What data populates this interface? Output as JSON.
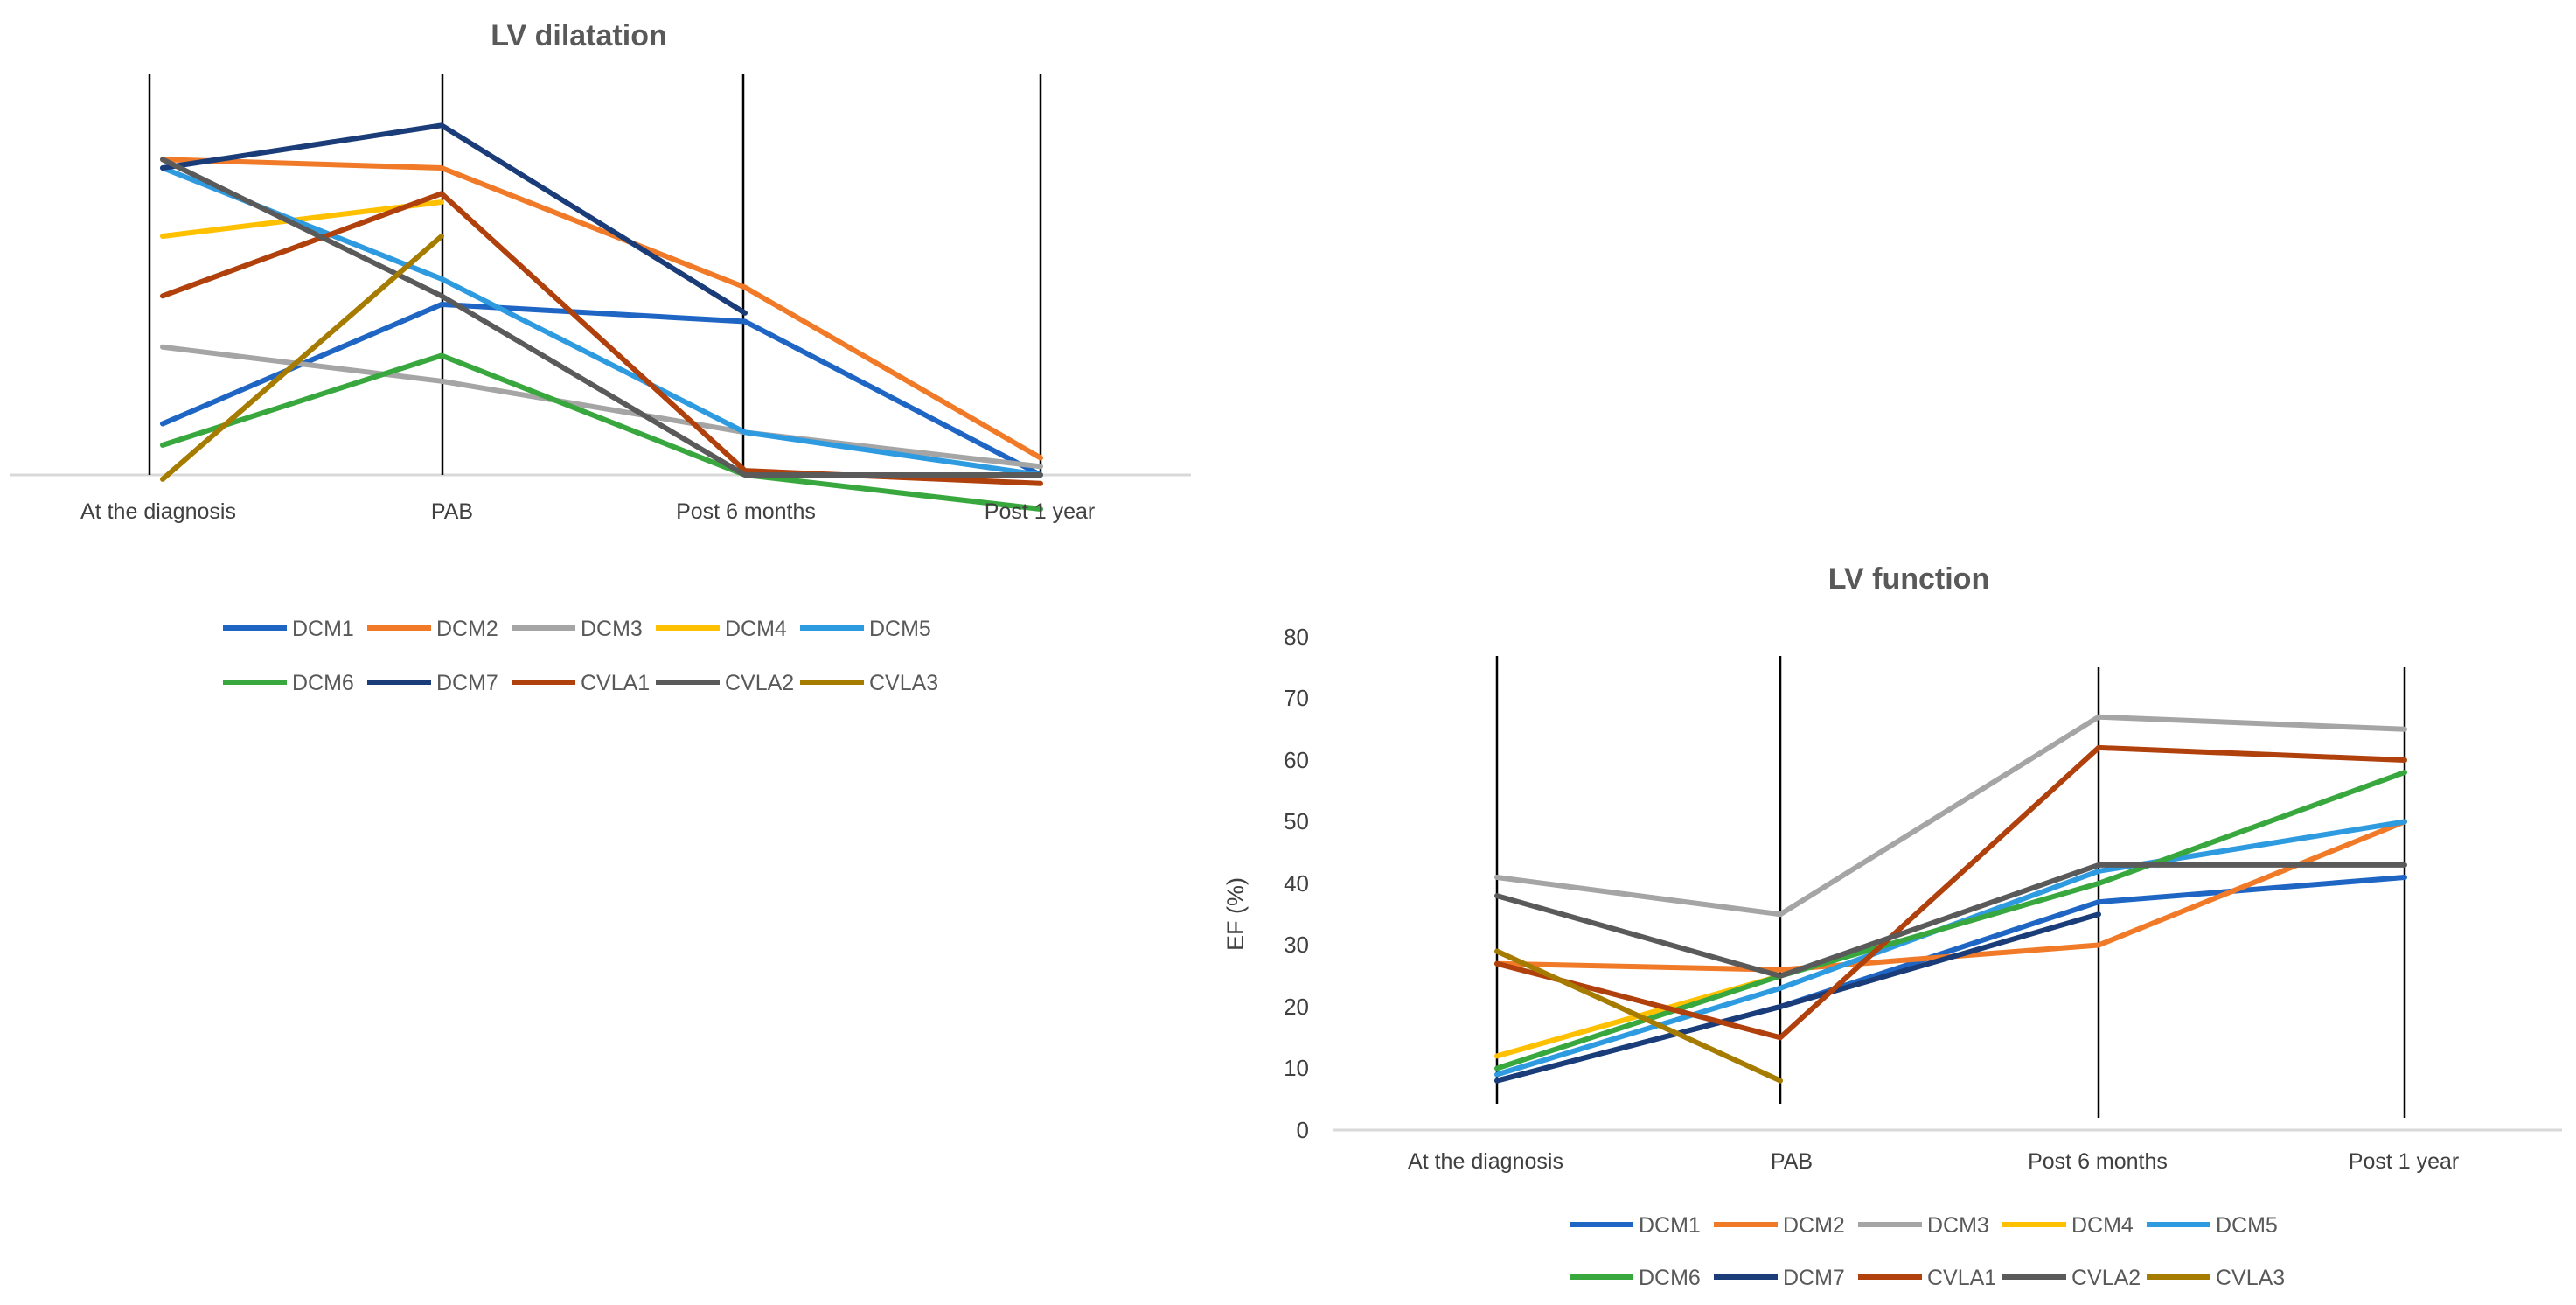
{
  "chart_data": [
    {
      "id": "dilatation",
      "type": "line",
      "title": "LV dilatation",
      "xlabel": "",
      "ylabel": "",
      "y_axis_visible": false,
      "ylim": [
        -5,
        45
      ],
      "categories": [
        "At the diagnosis",
        "PAB",
        "Post 6 months",
        "Post 1 year"
      ],
      "series": [
        {
          "name": "DCM1",
          "color": "#1F66C4",
          "values": [
            6,
            20,
            18,
            0
          ]
        },
        {
          "name": "DCM2",
          "color": "#F07A28",
          "values": [
            37,
            36,
            22,
            2
          ]
        },
        {
          "name": "DCM3",
          "color": "#A5A5A5",
          "values": [
            15,
            11,
            5,
            1
          ]
        },
        {
          "name": "DCM4",
          "color": "#FFC000",
          "values": [
            28,
            32,
            null,
            null
          ]
        },
        {
          "name": "DCM5",
          "color": "#2E9BE0",
          "values": [
            36,
            23,
            5,
            0
          ]
        },
        {
          "name": "DCM6",
          "color": "#38A83E",
          "values": [
            3.5,
            14,
            0,
            -4
          ]
        },
        {
          "name": "DCM7",
          "color": "#1A3C78",
          "values": [
            36,
            41,
            19,
            null
          ]
        },
        {
          "name": "CVLA1",
          "color": "#B0400C",
          "values": [
            21,
            33,
            0.5,
            -1
          ]
        },
        {
          "name": "CVLA2",
          "color": "#5A5A5A",
          "values": [
            37,
            21,
            0,
            0
          ]
        },
        {
          "name": "CVLA3",
          "color": "#A67C00",
          "values": [
            -0.5,
            28,
            null,
            null
          ]
        }
      ]
    },
    {
      "id": "function",
      "type": "line",
      "title": "LV function",
      "xlabel": "",
      "ylabel": "EF (%)",
      "ylim": [
        0,
        80
      ],
      "yticks": [
        "0",
        "10",
        "20",
        "30",
        "40",
        "50",
        "60",
        "70",
        "80"
      ],
      "categories": [
        "At the diagnosis",
        "PAB",
        "Post 6 months",
        "Post 1 year"
      ],
      "series": [
        {
          "name": "DCM1",
          "color": "#1F66C4",
          "values": [
            8,
            20,
            37,
            41
          ]
        },
        {
          "name": "DCM2",
          "color": "#F07A28",
          "values": [
            27,
            26,
            30,
            50
          ]
        },
        {
          "name": "DCM3",
          "color": "#A5A5A5",
          "values": [
            41,
            35,
            67,
            65
          ]
        },
        {
          "name": "DCM4",
          "color": "#FFC000",
          "values": [
            12,
            25,
            null,
            null
          ]
        },
        {
          "name": "DCM5",
          "color": "#2E9BE0",
          "values": [
            9,
            23,
            42,
            50
          ]
        },
        {
          "name": "DCM6",
          "color": "#38A83E",
          "values": [
            10,
            25,
            40,
            58
          ]
        },
        {
          "name": "DCM7",
          "color": "#1A3C78",
          "values": [
            8,
            20,
            35,
            null
          ]
        },
        {
          "name": "CVLA1",
          "color": "#B0400C",
          "values": [
            27,
            15,
            62,
            60
          ]
        },
        {
          "name": "CVLA2",
          "color": "#5A5A5A",
          "values": [
            38,
            25,
            43,
            43
          ]
        },
        {
          "name": "CVLA3",
          "color": "#A67C00",
          "values": [
            29,
            8,
            null,
            null
          ]
        }
      ]
    }
  ]
}
